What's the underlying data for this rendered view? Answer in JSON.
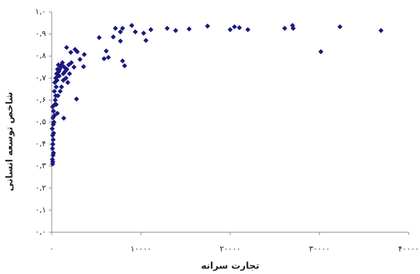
{
  "chart_data": {
    "type": "scatter",
    "xlabel": "تجارت سرانه",
    "ylabel": "شاخص توسعه انسانی",
    "color": "#1a1a80",
    "xlim": [
      0,
      40000
    ],
    "ylim": [
      0,
      1
    ],
    "xticks": [
      {
        "value": 0,
        "label": "۰"
      },
      {
        "value": 10000,
        "label": "۱۰۰۰۰"
      },
      {
        "value": 20000,
        "label": "۲۰۰۰۰"
      },
      {
        "value": 30000,
        "label": "۳۰۰۰۰"
      },
      {
        "value": 40000,
        "label": "۴۰۰۰۰"
      }
    ],
    "yticks": [
      {
        "value": 0,
        "label": "۰,۰"
      },
      {
        "value": 0.1,
        "label": "۰,۱"
      },
      {
        "value": 0.2,
        "label": "۰,۲"
      },
      {
        "value": 0.3,
        "label": "۰,۳"
      },
      {
        "value": 0.4,
        "label": "۰,۴"
      },
      {
        "value": 0.5,
        "label": "۰,۵"
      },
      {
        "value": 0.6,
        "label": "۰,۶"
      },
      {
        "value": 0.7,
        "label": "۰,۷"
      },
      {
        "value": 0.8,
        "label": "۰,۸"
      },
      {
        "value": 0.9,
        "label": "۰,۹"
      },
      {
        "value": 1,
        "label": "۱,۰"
      }
    ],
    "x": [
      5320,
      7140,
      7940,
      7700,
      8970,
      9370,
      10300,
      10560,
      11110,
      12940,
      13890,
      15400,
      17460,
      20000,
      20480,
      21030,
      21980,
      26110,
      26980,
      27060,
      30160,
      32300,
      36900,
      5870,
      6110,
      6350,
      7700,
      7940,
      8170,
      6900,
      3650,
      3570,
      3170,
      2620,
      2860,
      2140,
      1670,
      2780,
      1350,
      630,
      100,
      120,
      80,
      150,
      200,
      90,
      130,
      170,
      110,
      220,
      60,
      180,
      250,
      140,
      300,
      200,
      100,
      350,
      400,
      450,
      300,
      500,
      350,
      600,
      450,
      700,
      550,
      800,
      650,
      900,
      1000,
      750,
      1100,
      1200,
      850,
      1300,
      1500,
      1400,
      1700,
      1900,
      2200,
      1600,
      2000,
      1800,
      1100,
      1300,
      2500,
      950,
      700,
      500
    ],
    "values": [
      0.884,
      0.926,
      0.926,
      0.91,
      0.939,
      0.91,
      0.904,
      0.871,
      0.92,
      0.926,
      0.916,
      0.923,
      0.936,
      0.92,
      0.933,
      0.929,
      0.92,
      0.926,
      0.939,
      0.926,
      0.82,
      0.933,
      0.916,
      0.788,
      0.823,
      0.794,
      0.868,
      0.778,
      0.756,
      0.887,
      0.807,
      0.752,
      0.785,
      0.83,
      0.82,
      0.817,
      0.839,
      0.605,
      0.518,
      0.54,
      0.31,
      0.32,
      0.33,
      0.35,
      0.36,
      0.38,
      0.4,
      0.42,
      0.44,
      0.45,
      0.47,
      0.49,
      0.5,
      0.52,
      0.53,
      0.55,
      0.57,
      0.58,
      0.6,
      0.62,
      0.64,
      0.66,
      0.68,
      0.69,
      0.7,
      0.71,
      0.72,
      0.73,
      0.74,
      0.74,
      0.75,
      0.76,
      0.76,
      0.77,
      0.71,
      0.72,
      0.73,
      0.75,
      0.74,
      0.76,
      0.77,
      0.7,
      0.72,
      0.68,
      0.66,
      0.69,
      0.75,
      0.64,
      0.62,
      0.58
    ]
  }
}
